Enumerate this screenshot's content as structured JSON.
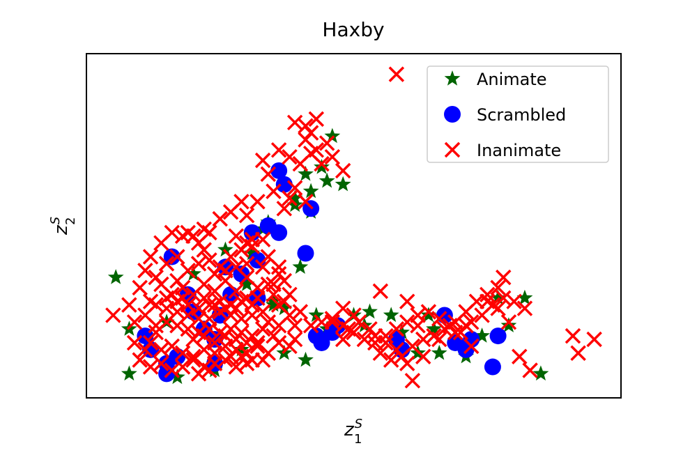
{
  "chart_data": {
    "type": "scatter",
    "title": "Haxby",
    "xlabel": {
      "base": "z",
      "sup": "S",
      "sub": "1"
    },
    "ylabel": {
      "base": "z",
      "sup": "S",
      "sub": "2"
    },
    "xlim": [
      0,
      100
    ],
    "ylim": [
      0,
      100
    ],
    "ticks_visible": false,
    "grid": false,
    "legend_position": "top-right",
    "series": [
      {
        "name": "Animate",
        "marker": "star",
        "color": "#006400",
        "points": [
          [
            5.5,
            35
          ],
          [
            8,
            20
          ],
          [
            8,
            7
          ],
          [
            17,
            6
          ],
          [
            24,
            8
          ],
          [
            20,
            36
          ],
          [
            15,
            22
          ],
          [
            26,
            43
          ],
          [
            29,
            14
          ],
          [
            31,
            42
          ],
          [
            30,
            33
          ],
          [
            37,
            13
          ],
          [
            34,
            51
          ],
          [
            35,
            27
          ],
          [
            40,
            38
          ],
          [
            39,
            58
          ],
          [
            37,
            26
          ],
          [
            41,
            11
          ],
          [
            35,
            28
          ],
          [
            42,
            54
          ],
          [
            44,
            67
          ],
          [
            46,
            76
          ],
          [
            41,
            65
          ],
          [
            42,
            60
          ],
          [
            45,
            63
          ],
          [
            48,
            62
          ],
          [
            39,
            56
          ],
          [
            43,
            24
          ],
          [
            45,
            20
          ],
          [
            50,
            24
          ],
          [
            52,
            21
          ],
          [
            53,
            25
          ],
          [
            57,
            24
          ],
          [
            59,
            19
          ],
          [
            62,
            13
          ],
          [
            64,
            24
          ],
          [
            65,
            20
          ],
          [
            66,
            13
          ],
          [
            71,
            12
          ],
          [
            74,
            18
          ],
          [
            77,
            29
          ],
          [
            79,
            21
          ],
          [
            82,
            29
          ],
          [
            85,
            7
          ],
          [
            33,
            49
          ],
          [
            27,
            30
          ]
        ]
      },
      {
        "name": "Scrambled",
        "marker": "circle",
        "color": "#0000ff",
        "points": [
          [
            36,
            66
          ],
          [
            37,
            62
          ],
          [
            42,
            55
          ],
          [
            41,
            42
          ],
          [
            36,
            48
          ],
          [
            34,
            50
          ],
          [
            31,
            48
          ],
          [
            32,
            40
          ],
          [
            32,
            29
          ],
          [
            16,
            41
          ],
          [
            11,
            18
          ],
          [
            12,
            14
          ],
          [
            15,
            10
          ],
          [
            15,
            7
          ],
          [
            17,
            12
          ],
          [
            24,
            10
          ],
          [
            22,
            20
          ],
          [
            25,
            24
          ],
          [
            27,
            30
          ],
          [
            19,
            30
          ],
          [
            43,
            18
          ],
          [
            44,
            16
          ],
          [
            46,
            19
          ],
          [
            47,
            21
          ],
          [
            58,
            17
          ],
          [
            59,
            14
          ],
          [
            67,
            24
          ],
          [
            69,
            16
          ],
          [
            71,
            14
          ],
          [
            72,
            17
          ],
          [
            77,
            18
          ],
          [
            76,
            9
          ],
          [
            20,
            25
          ],
          [
            26,
            38
          ],
          [
            29,
            36
          ],
          [
            24,
            17
          ]
        ]
      },
      {
        "name": "Inanimate",
        "marker": "x",
        "color": "#ff0000",
        "points": [
          [
            58,
            94
          ],
          [
            39,
            80
          ],
          [
            41,
            79
          ],
          [
            42,
            77
          ],
          [
            43,
            81
          ],
          [
            36,
            72
          ],
          [
            38,
            70
          ],
          [
            40,
            68
          ],
          [
            41,
            75
          ],
          [
            43,
            72
          ],
          [
            44,
            68
          ],
          [
            46,
            70
          ],
          [
            48,
            66
          ],
          [
            33,
            69
          ],
          [
            34,
            65
          ],
          [
            35,
            60
          ],
          [
            38,
            58
          ],
          [
            39,
            61
          ],
          [
            41,
            57
          ],
          [
            37,
            55
          ],
          [
            32,
            57
          ],
          [
            30,
            53
          ],
          [
            29,
            57
          ],
          [
            27,
            54
          ],
          [
            25,
            52
          ],
          [
            23,
            48
          ],
          [
            22,
            49
          ],
          [
            21,
            45
          ],
          [
            20,
            47
          ],
          [
            19,
            48
          ],
          [
            18,
            47
          ],
          [
            16,
            48
          ],
          [
            14,
            45
          ],
          [
            12,
            41
          ],
          [
            11,
            37
          ],
          [
            13,
            35
          ],
          [
            14,
            33
          ],
          [
            12,
            28
          ],
          [
            15,
            29
          ],
          [
            17,
            28
          ],
          [
            19,
            27
          ],
          [
            21,
            26
          ],
          [
            23,
            27
          ],
          [
            25,
            28
          ],
          [
            27,
            27
          ],
          [
            29,
            28
          ],
          [
            31,
            27
          ],
          [
            33,
            25
          ],
          [
            10,
            32
          ],
          [
            8,
            27
          ],
          [
            5,
            24
          ],
          [
            9,
            22
          ],
          [
            11,
            24
          ],
          [
            13,
            21
          ],
          [
            15,
            22
          ],
          [
            17,
            21
          ],
          [
            19,
            20
          ],
          [
            21,
            19
          ],
          [
            23,
            20
          ],
          [
            25,
            19
          ],
          [
            27,
            20
          ],
          [
            29,
            19
          ],
          [
            31,
            18
          ],
          [
            33,
            20
          ],
          [
            35,
            18
          ],
          [
            12,
            16
          ],
          [
            14,
            14
          ],
          [
            16,
            15
          ],
          [
            18,
            13
          ],
          [
            20,
            12
          ],
          [
            22,
            14
          ],
          [
            24,
            13
          ],
          [
            26,
            15
          ],
          [
            28,
            14
          ],
          [
            30,
            13
          ],
          [
            32,
            15
          ],
          [
            34,
            13
          ],
          [
            36,
            16
          ],
          [
            38,
            15
          ],
          [
            10,
            11
          ],
          [
            12,
            9
          ],
          [
            14,
            10
          ],
          [
            16,
            8
          ],
          [
            18,
            9
          ],
          [
            20,
            11
          ],
          [
            22,
            9
          ],
          [
            24,
            10
          ],
          [
            26,
            11
          ],
          [
            28,
            9
          ],
          [
            30,
            10
          ],
          [
            18,
            32
          ],
          [
            20,
            30
          ],
          [
            22,
            33
          ],
          [
            24,
            31
          ],
          [
            26,
            34
          ],
          [
            28,
            31
          ],
          [
            30,
            35
          ],
          [
            32,
            32
          ],
          [
            23,
            40
          ],
          [
            25,
            38
          ],
          [
            27,
            41
          ],
          [
            29,
            43
          ],
          [
            31,
            44
          ],
          [
            19,
            37
          ],
          [
            21,
            39
          ],
          [
            24,
            36
          ],
          [
            26,
            37
          ],
          [
            28,
            38
          ],
          [
            30,
            39
          ],
          [
            15,
            39
          ],
          [
            17,
            41
          ],
          [
            17,
            34
          ],
          [
            23,
            23
          ],
          [
            25,
            25
          ],
          [
            27,
            24
          ],
          [
            29,
            23
          ],
          [
            31,
            24
          ],
          [
            21,
            23
          ],
          [
            19,
            24
          ],
          [
            17,
            25
          ],
          [
            15,
            26
          ],
          [
            13,
            27
          ],
          [
            35,
            30
          ],
          [
            37,
            28
          ],
          [
            33,
            38
          ],
          [
            34,
            33
          ],
          [
            36,
            36
          ],
          [
            33,
            46
          ],
          [
            38,
            24
          ],
          [
            39,
            21
          ],
          [
            39,
            17
          ],
          [
            36,
            27
          ],
          [
            38,
            30
          ],
          [
            40,
            25
          ],
          [
            42,
            21
          ],
          [
            44,
            22
          ],
          [
            46,
            23
          ],
          [
            48,
            21
          ],
          [
            50,
            19
          ],
          [
            52,
            17
          ],
          [
            54,
            16
          ],
          [
            56,
            18
          ],
          [
            58,
            20
          ],
          [
            60,
            22
          ],
          [
            62,
            24
          ],
          [
            64,
            25
          ],
          [
            66,
            23
          ],
          [
            68,
            21
          ],
          [
            70,
            19
          ],
          [
            72,
            22
          ],
          [
            74,
            24
          ],
          [
            76,
            27
          ],
          [
            78,
            29
          ],
          [
            80,
            28
          ],
          [
            82,
            26
          ],
          [
            50,
            24
          ],
          [
            48,
            26
          ],
          [
            46,
            22
          ],
          [
            55,
            13
          ],
          [
            57,
            11
          ],
          [
            59,
            12
          ],
          [
            61,
            15
          ],
          [
            63,
            17
          ],
          [
            65,
            18
          ],
          [
            67,
            20
          ],
          [
            69,
            22
          ],
          [
            71,
            25
          ],
          [
            73,
            28
          ],
          [
            75,
            30
          ],
          [
            77,
            32
          ],
          [
            78,
            35
          ],
          [
            55,
            31
          ],
          [
            60,
            28
          ],
          [
            62,
            21
          ],
          [
            53,
            20
          ],
          [
            54,
            18
          ],
          [
            56,
            16
          ],
          [
            58,
            14
          ],
          [
            60,
            10
          ],
          [
            49,
            20
          ],
          [
            48,
            17
          ],
          [
            51,
            22
          ],
          [
            63,
            12
          ],
          [
            66,
            17
          ],
          [
            69,
            19
          ],
          [
            61,
            5
          ],
          [
            71,
            21
          ],
          [
            72,
            15
          ],
          [
            75,
            28
          ],
          [
            77,
            26
          ],
          [
            79,
            22
          ],
          [
            81,
            12
          ],
          [
            83,
            8
          ],
          [
            91,
            18
          ],
          [
            92,
            13
          ],
          [
            95,
            17
          ],
          [
            42,
            71
          ],
          [
            45,
            74
          ],
          [
            28,
            47
          ],
          [
            31,
            46
          ],
          [
            30,
            45
          ],
          [
            22,
            43
          ],
          [
            16,
            30
          ],
          [
            18,
            29
          ],
          [
            34,
            41
          ],
          [
            36,
            38
          ],
          [
            35,
            33
          ],
          [
            37,
            34
          ],
          [
            28,
            26
          ],
          [
            30,
            29
          ],
          [
            32,
            29
          ],
          [
            22,
            29
          ],
          [
            24,
            27
          ],
          [
            26,
            26
          ],
          [
            20,
            17
          ],
          [
            22,
            18
          ],
          [
            24,
            16
          ],
          [
            26,
            18
          ],
          [
            28,
            17
          ],
          [
            30,
            16
          ],
          [
            32,
            16
          ],
          [
            34,
            22
          ],
          [
            36,
            21
          ],
          [
            13,
            19
          ],
          [
            11,
            14
          ],
          [
            9,
            16
          ],
          [
            21,
            7
          ],
          [
            23,
            8
          ],
          [
            27,
            12
          ],
          [
            29,
            12
          ],
          [
            31,
            11
          ],
          [
            33,
            11
          ]
        ]
      }
    ]
  }
}
